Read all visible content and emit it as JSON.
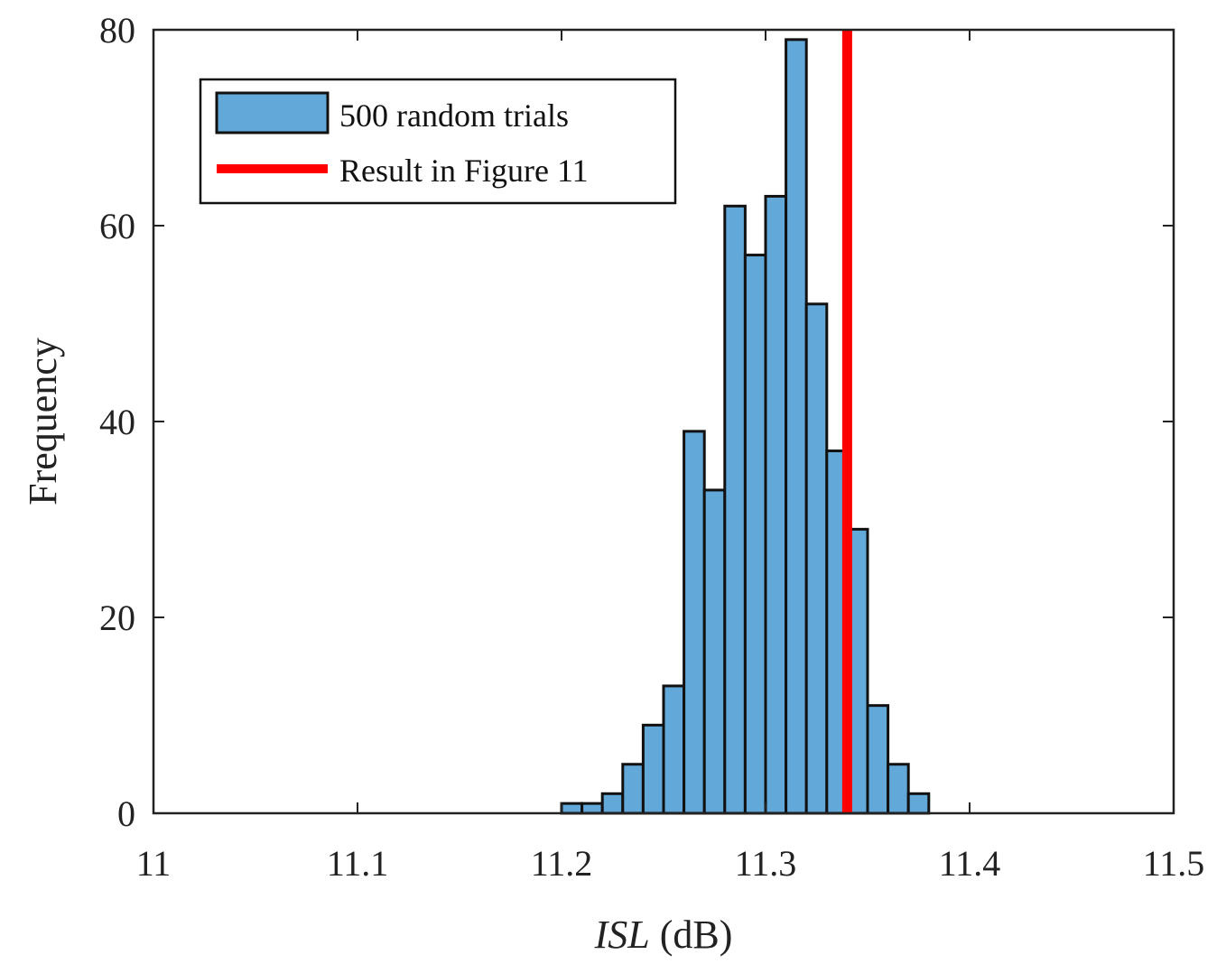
{
  "chart_data": {
    "type": "histogram",
    "title": "",
    "xlabel_italic": "ISL",
    "xlabel_unit": " (dB)",
    "ylabel": "Frequency",
    "xlim": [
      11,
      11.5
    ],
    "ylim": [
      0,
      80
    ],
    "xticks": [
      11,
      11.1,
      11.2,
      11.3,
      11.4,
      11.5
    ],
    "xtick_labels": [
      "11",
      "11.1",
      "11.2",
      "11.3",
      "11.4",
      "11.5"
    ],
    "yticks": [
      0,
      20,
      40,
      60,
      80
    ],
    "ytick_labels": [
      "0",
      "20",
      "40",
      "60",
      "80"
    ],
    "grid": false,
    "bin_width": 0.01,
    "bin_starts": [
      11.2,
      11.21,
      11.22,
      11.23,
      11.24,
      11.25,
      11.26,
      11.27,
      11.28,
      11.29,
      11.3,
      11.31,
      11.32,
      11.33,
      11.34,
      11.35,
      11.36,
      11.37
    ],
    "counts": [
      1,
      1,
      2,
      5,
      9,
      13,
      39,
      33,
      62,
      57,
      63,
      79,
      52,
      37,
      29,
      11,
      5,
      2
    ],
    "series": [
      {
        "name": "500 random trials",
        "kind": "histogram",
        "color": "#62A8D8"
      },
      {
        "name": "Result in Figure 11",
        "kind": "vertical-line",
        "x": 11.34,
        "color": "#FF0000"
      }
    ],
    "legend": {
      "placement": "top-left",
      "entries": [
        "500 random trials",
        "Result in Figure 11"
      ]
    }
  }
}
